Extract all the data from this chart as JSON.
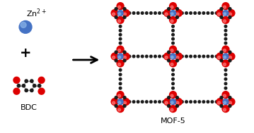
{
  "background_color": "#ffffff",
  "zn_label": "Zn$^{2+}$",
  "zn_color": "#4472c4",
  "red_color": "#dd0000",
  "blue_color": "#4472c4",
  "black_color": "#1a1a1a",
  "mof5_label": "MOF-5",
  "bdc_label": "BDC",
  "figsize": [
    3.59,
    1.89
  ],
  "dpi": 100
}
